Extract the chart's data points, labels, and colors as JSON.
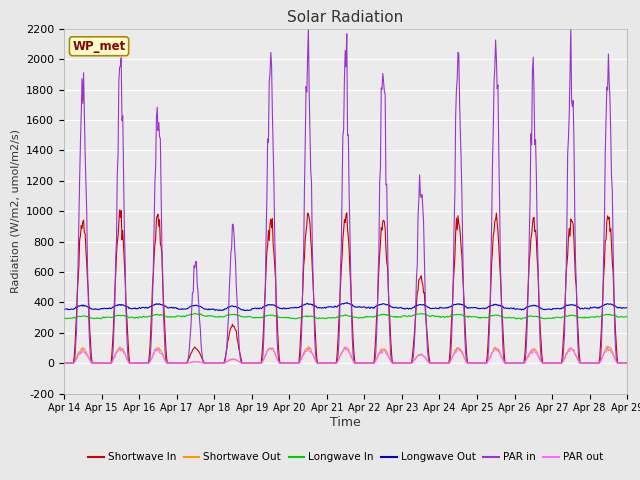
{
  "title": "Solar Radiation",
  "ylabel": "Radiation (W/m2, umol/m2/s)",
  "xlabel": "Time",
  "ylim": [
    -200,
    2200
  ],
  "bg_color": "#e8e8e8",
  "plot_bg_color": "#ebebeb",
  "station_label": "WP_met",
  "xtick_labels": [
    "Apr 14",
    "Apr 15",
    "Apr 16",
    "Apr 17",
    "Apr 18",
    "Apr 19",
    "Apr 20",
    "Apr 21",
    "Apr 22",
    "Apr 23",
    "Apr 24",
    "Apr 25",
    "Apr 26",
    "Apr 27",
    "Apr 28",
    "Apr 29"
  ],
  "legend": [
    {
      "label": "Shortwave In",
      "color": "#cc0000"
    },
    {
      "label": "Shortwave Out",
      "color": "#ff9900"
    },
    {
      "label": "Longwave In",
      "color": "#00cc00"
    },
    {
      "label": "Longwave Out",
      "color": "#0000cc"
    },
    {
      "label": "PAR in",
      "color": "#9933cc"
    },
    {
      "label": "PAR out",
      "color": "#ff66ff"
    }
  ],
  "yticks": [
    -200,
    0,
    200,
    400,
    600,
    800,
    1000,
    1200,
    1400,
    1600,
    1800,
    2000,
    2200
  ],
  "n_days": 15,
  "pts_per_day": 48
}
